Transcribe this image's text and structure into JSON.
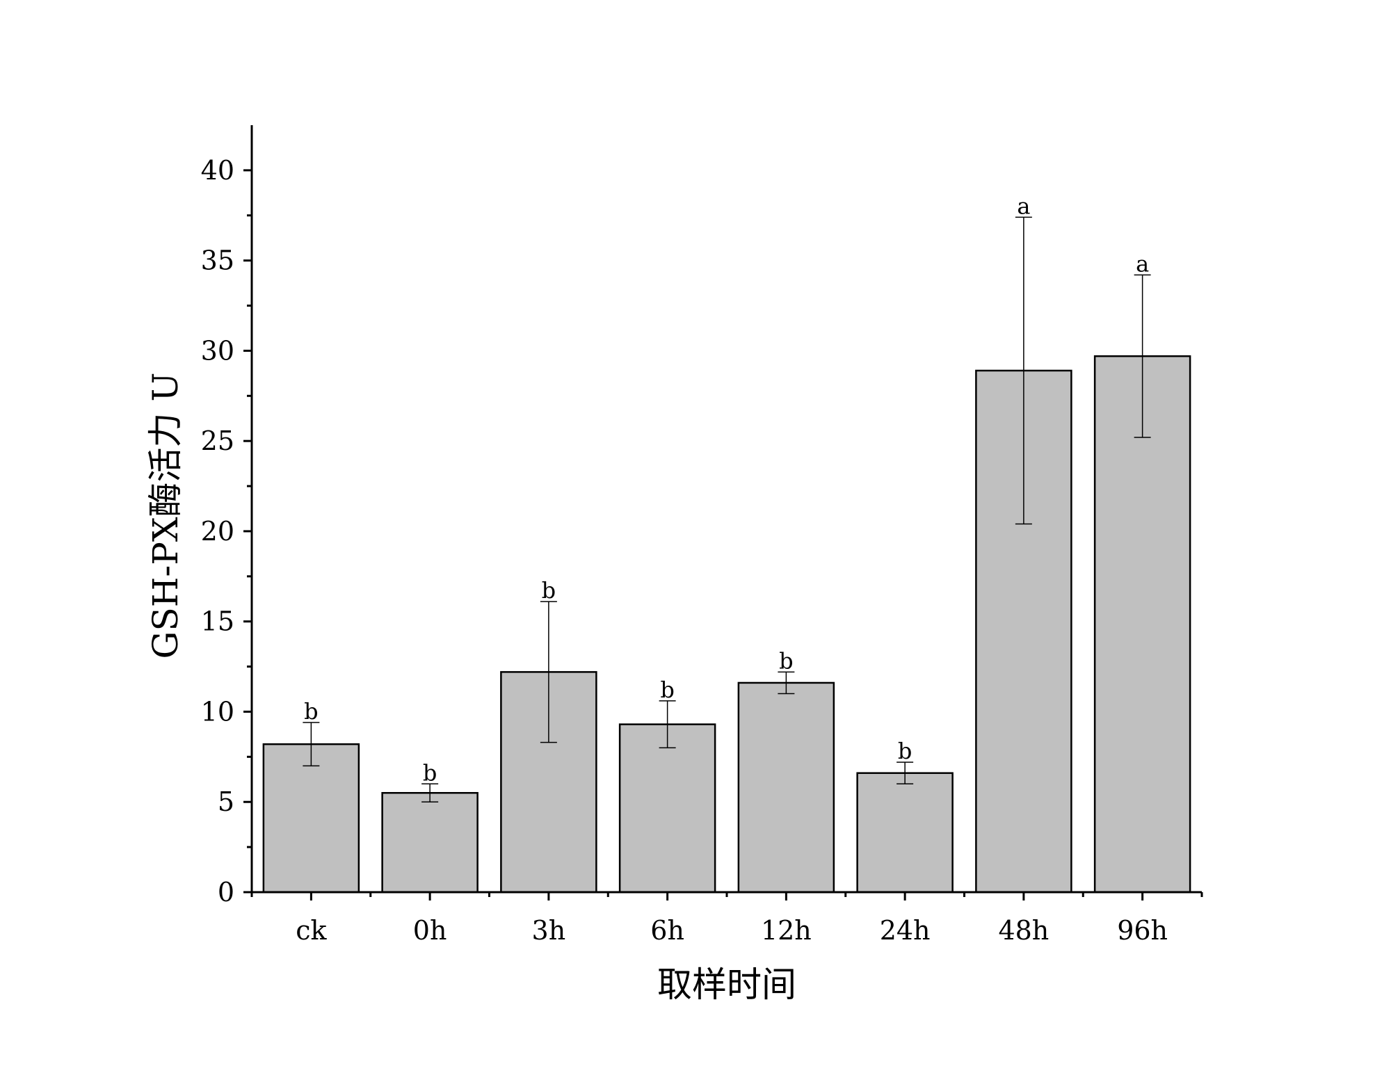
{
  "chart_data": {
    "type": "bar",
    "xlabel": "取样时间",
    "ylabel": "GSH-PX酶活力 U",
    "categories": [
      "ck",
      "0h",
      "3h",
      "6h",
      "12h",
      "24h",
      "48h",
      "96h"
    ],
    "values": [
      8.2,
      5.5,
      12.2,
      9.3,
      11.6,
      6.6,
      28.9,
      29.7
    ],
    "errors": [
      1.2,
      0.5,
      3.9,
      1.3,
      0.6,
      0.6,
      8.5,
      4.5
    ],
    "significance": [
      "b",
      "b",
      "b",
      "b",
      "b",
      "b",
      "a",
      "a"
    ],
    "ylim": [
      0,
      42.5
    ],
    "yticks": [
      0,
      5,
      10,
      15,
      20,
      25,
      30,
      35,
      40
    ],
    "grid": false,
    "bar_color": "#c0c0c0",
    "bar_edge_color": "#000000"
  }
}
